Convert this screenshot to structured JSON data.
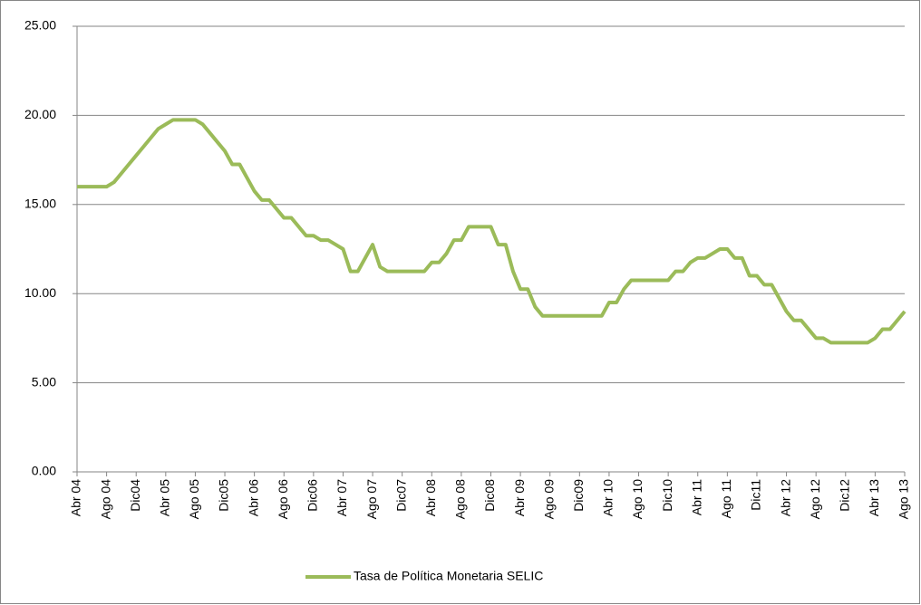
{
  "chart_data": {
    "type": "line",
    "categories": [
      "Abr 04",
      null,
      null,
      null,
      "Ago 04",
      null,
      null,
      null,
      "Dic04",
      null,
      null,
      null,
      "Abr 05",
      null,
      null,
      null,
      "Ago 05",
      null,
      null,
      null,
      "Dic05",
      null,
      null,
      null,
      "Abr 06",
      null,
      null,
      null,
      "Ago 06",
      null,
      null,
      null,
      "Dic06",
      null,
      null,
      null,
      "Abr 07",
      null,
      null,
      null,
      "Ago 07",
      null,
      null,
      null,
      "Dic07",
      null,
      null,
      null,
      "Abr 08",
      null,
      null,
      null,
      "Ago 08",
      null,
      null,
      null,
      "Dic08",
      null,
      null,
      null,
      "Abr 09",
      null,
      null,
      null,
      "Ago 09",
      null,
      null,
      null,
      "Dic09",
      null,
      null,
      null,
      "Abr 10",
      null,
      null,
      null,
      "Ago 10",
      null,
      null,
      null,
      "Dic10",
      null,
      null,
      null,
      "Abr 11",
      null,
      null,
      null,
      "Ago 11",
      null,
      null,
      null,
      "Dic11",
      null,
      null,
      null,
      "Abr 12",
      null,
      null,
      null,
      "Ago 12",
      null,
      null,
      null,
      "Dic12",
      null,
      null,
      null,
      "Abr 13",
      null,
      null,
      null,
      "Ago 13"
    ],
    "series": [
      {
        "name": "Tasa de Política Monetaria SELIC",
        "color": "#9bbb59",
        "values": [
          16,
          16,
          16,
          16,
          16,
          16.25,
          16.75,
          17.25,
          17.75,
          18.25,
          18.75,
          19.25,
          19.5,
          19.75,
          19.75,
          19.75,
          19.75,
          19.5,
          19,
          18.5,
          18,
          17.25,
          17.25,
          16.5,
          15.75,
          15.25,
          15.25,
          14.75,
          14.25,
          14.25,
          13.75,
          13.25,
          13.25,
          13,
          13,
          12.75,
          12.5,
          11.25,
          11.25,
          12,
          12.75,
          11.5,
          11.25,
          11.25,
          11.25,
          11.25,
          11.25,
          11.25,
          11.75,
          11.75,
          12.25,
          13,
          13,
          13.75,
          13.75,
          13.75,
          13.75,
          12.75,
          12.75,
          11.25,
          10.25,
          10.25,
          9.25,
          8.75,
          8.75,
          8.75,
          8.75,
          8.75,
          8.75,
          8.75,
          8.75,
          8.75,
          9.5,
          9.5,
          10.25,
          10.75,
          10.75,
          10.75,
          10.75,
          10.75,
          10.75,
          11.25,
          11.25,
          11.75,
          12,
          12,
          12.25,
          12.5,
          12.5,
          12,
          12,
          11,
          11,
          10.5,
          10.5,
          9.75,
          9,
          8.5,
          8.5,
          8,
          7.5,
          7.5,
          7.25,
          7.25,
          7.25,
          7.25,
          7.25,
          7.25,
          7.5,
          8,
          8,
          8.5,
          9
        ]
      }
    ],
    "ylim": [
      0,
      25
    ],
    "yticks": [
      {
        "value": 0,
        "label": "0.00"
      },
      {
        "value": 5,
        "label": "5.00"
      },
      {
        "value": 10,
        "label": "10.00"
      },
      {
        "value": 15,
        "label": "15.00"
      },
      {
        "value": 20,
        "label": "20.00"
      },
      {
        "value": 25,
        "label": "25.00"
      }
    ],
    "grid": true,
    "legend": "bottom"
  }
}
